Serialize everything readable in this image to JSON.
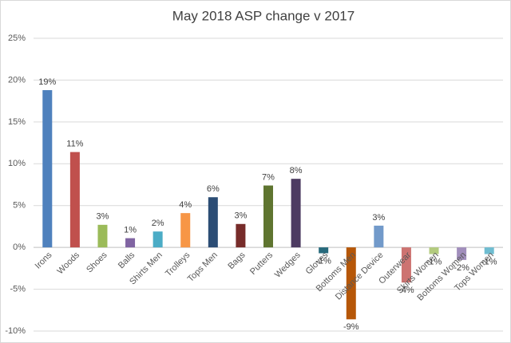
{
  "chart_data": {
    "type": "bar",
    "title": "May 2018 ASP change v 2017",
    "categories": [
      "Irons",
      "Woods",
      "Shoes",
      "Balls",
      "Shirts Men",
      "Trolleys",
      "Tops Men",
      "Bags",
      "Putters",
      "Wedges",
      "Gloves",
      "Bottoms Men",
      "Distance Device",
      "Outerwear",
      "Skirts Women",
      "Bottoms Women",
      "Tops Women"
    ],
    "values": [
      18.8,
      11.4,
      2.7,
      1.1,
      1.9,
      4.1,
      6.0,
      2.8,
      7.4,
      8.2,
      -0.7,
      -8.6,
      2.6,
      -4.2,
      -0.8,
      -1.5,
      -0.8
    ],
    "value_labels": [
      "19%",
      "11%",
      "3%",
      "1%",
      "2%",
      "4%",
      "6%",
      "3%",
      "7%",
      "8%",
      "-1%",
      "-9%",
      "3%",
      "-4%",
      "-1%",
      "-2%",
      "-1%"
    ],
    "colors": [
      "#4f81bd",
      "#c0504d",
      "#9bbb59",
      "#8064a2",
      "#4bacc6",
      "#f79646",
      "#2c4d75",
      "#772c2a",
      "#5f7530",
      "#4d3b62",
      "#276a7c",
      "#b65708",
      "#729aca",
      "#cd7371",
      "#b3cb7e",
      "#a18ebc",
      "#6fbdd1"
    ],
    "ylim": [
      -10,
      25
    ],
    "yticks": [
      {
        "value": -10,
        "label": "-10%"
      },
      {
        "value": -5,
        "label": "-5%"
      },
      {
        "value": 0,
        "label": "0%"
      },
      {
        "value": 5,
        "label": "5%"
      },
      {
        "value": 10,
        "label": "10%"
      },
      {
        "value": 15,
        "label": "15%"
      },
      {
        "value": 20,
        "label": "20%"
      },
      {
        "value": 25,
        "label": "25%"
      }
    ],
    "grid": true
  }
}
